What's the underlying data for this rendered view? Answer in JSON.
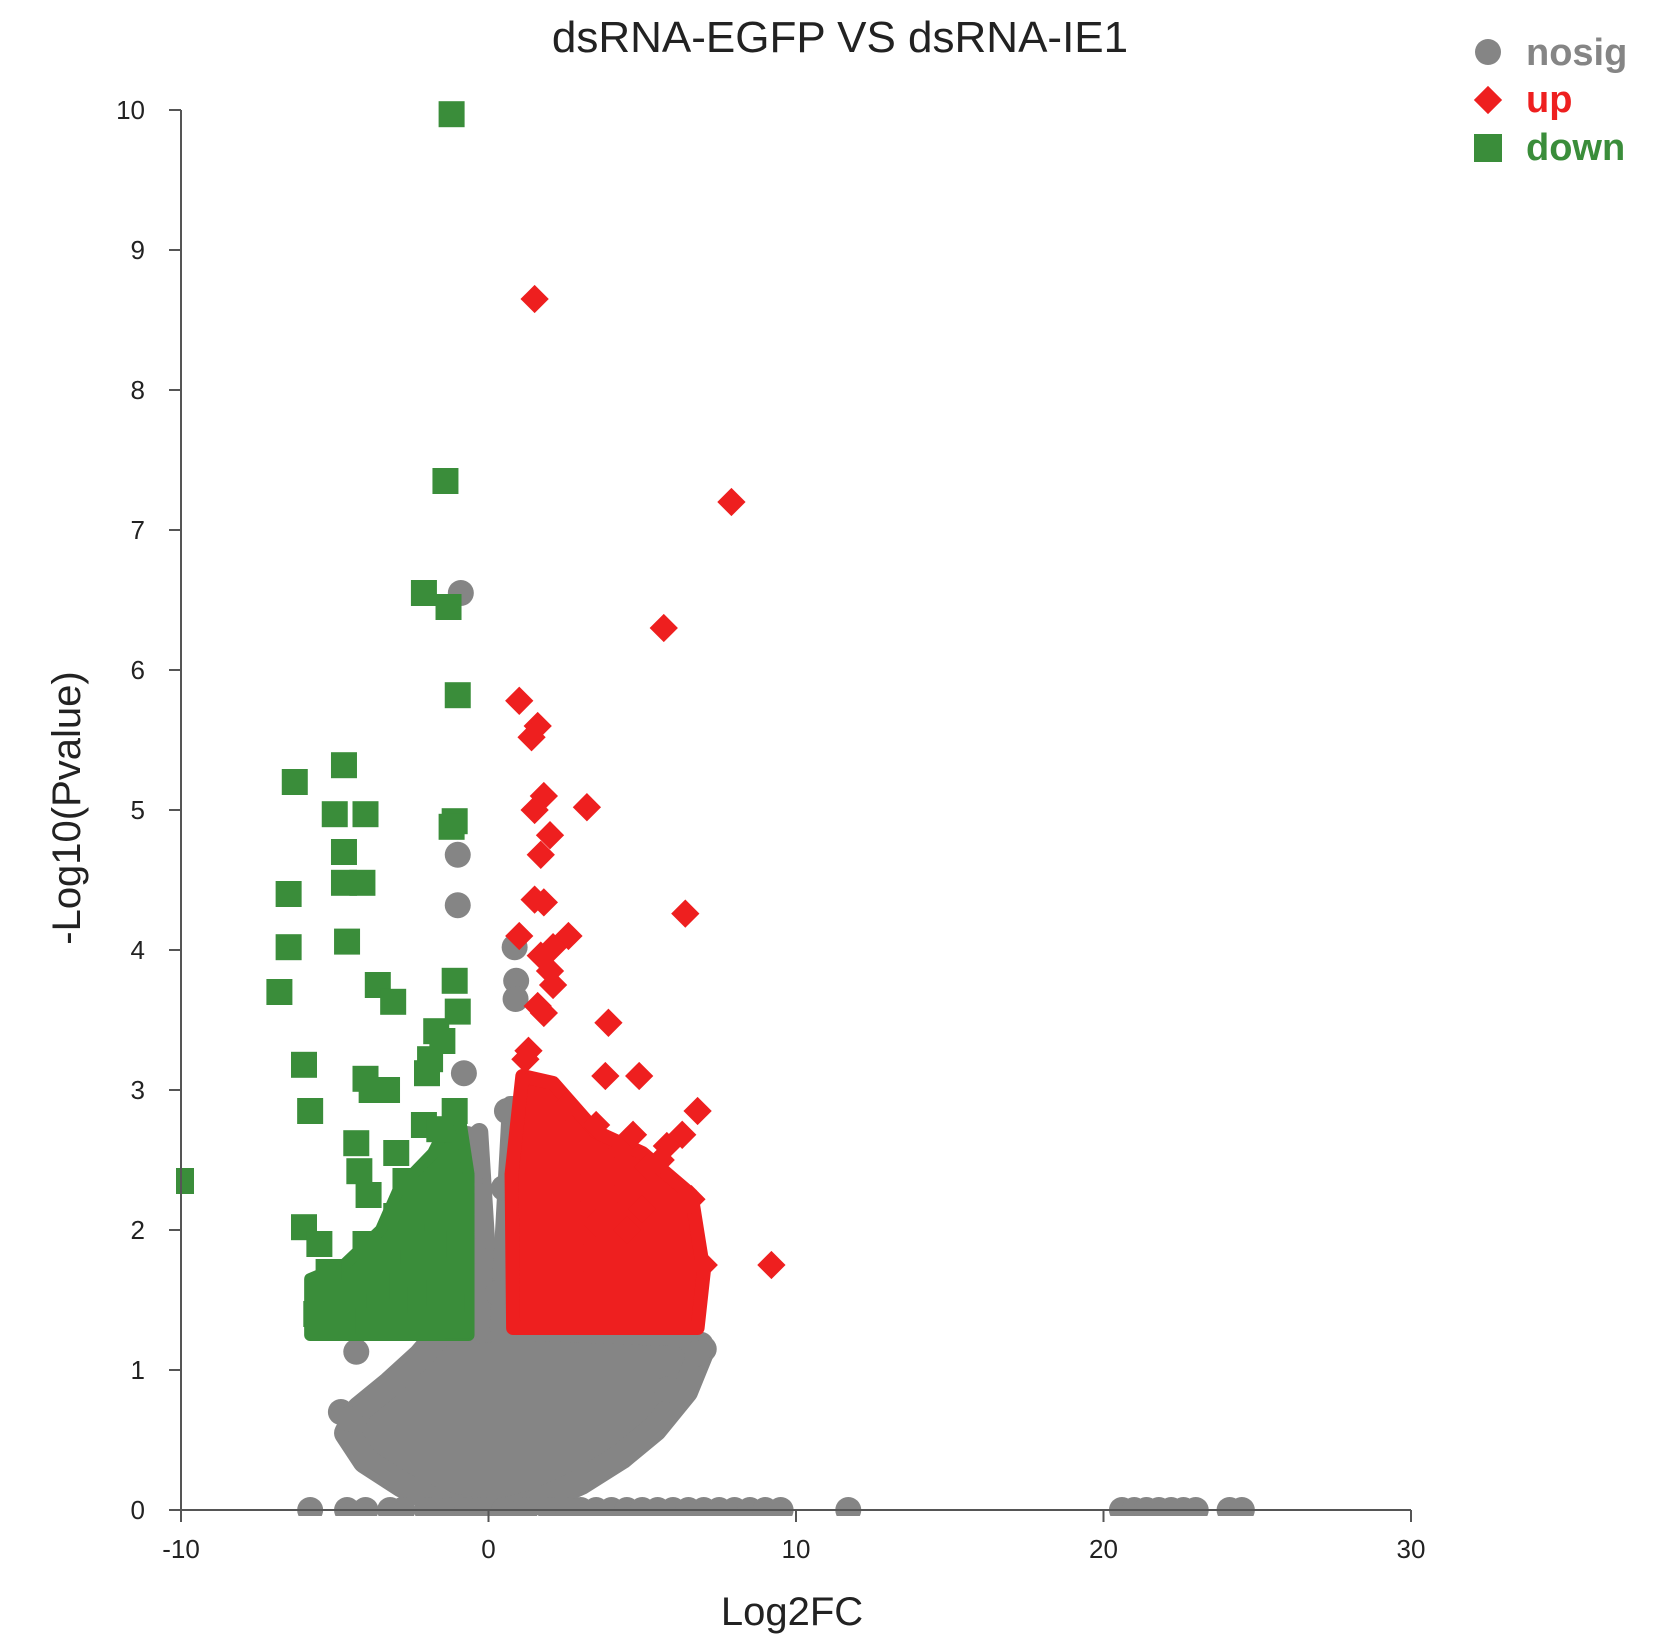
{
  "chart_data": {
    "type": "scatter",
    "title": "dsRNA-EGFP VS dsRNA-IE1",
    "xlabel": "Log2FC",
    "ylabel": "-Log10(Pvalue)",
    "xlim": [
      -10,
      30
    ],
    "ylim": [
      0,
      10
    ],
    "xticks": [
      "-10",
      "0",
      "10",
      "20",
      "30"
    ],
    "yticks": [
      "0",
      "1",
      "2",
      "3",
      "4",
      "5",
      "6",
      "7",
      "8",
      "9",
      "10"
    ],
    "grid": false,
    "legend_position": "top-right",
    "series": [
      {
        "name": "nosig",
        "color": "#858585",
        "marker": "circle",
        "points": [
          [
            -0.9,
            6.55
          ],
          [
            -1.0,
            4.68
          ],
          [
            -1.0,
            4.32
          ],
          [
            0.85,
            4.02
          ],
          [
            0.9,
            3.78
          ],
          [
            0.88,
            3.65
          ],
          [
            -0.8,
            3.12
          ],
          [
            0.6,
            2.85
          ],
          [
            -0.7,
            2.65
          ],
          [
            -0.6,
            2.35
          ],
          [
            0.5,
            2.3
          ],
          [
            -0.5,
            1.85
          ],
          [
            0.3,
            1.55
          ],
          [
            6.9,
            1.18
          ],
          [
            7.0,
            1.15
          ],
          [
            6.8,
            1.12
          ],
          [
            5.8,
            0.86
          ],
          [
            -4.3,
            1.13
          ],
          [
            -4.8,
            0.7
          ],
          [
            -4.5,
            0.65
          ],
          [
            -5.8,
            0
          ],
          [
            -4.6,
            0
          ],
          [
            -4.0,
            0
          ],
          [
            -3.2,
            0
          ],
          [
            -2.8,
            0
          ],
          [
            -2.0,
            0
          ],
          [
            -1.3,
            0
          ],
          [
            -0.7,
            0
          ],
          [
            -0.2,
            0
          ],
          [
            0.5,
            0
          ],
          [
            1.2,
            0
          ],
          [
            2.0,
            0
          ],
          [
            2.6,
            0
          ],
          [
            3.0,
            0
          ],
          [
            3.5,
            0
          ],
          [
            4.0,
            0
          ],
          [
            4.5,
            0
          ],
          [
            5.0,
            0
          ],
          [
            5.5,
            0
          ],
          [
            6.0,
            0
          ],
          [
            6.5,
            0
          ],
          [
            7.0,
            0
          ],
          [
            7.5,
            0
          ],
          [
            8.0,
            0
          ],
          [
            8.5,
            0
          ],
          [
            9.0,
            0
          ],
          [
            9.5,
            0
          ],
          [
            11.7,
            0
          ],
          [
            20.6,
            0
          ],
          [
            21.0,
            0
          ],
          [
            21.4,
            0
          ],
          [
            21.8,
            0
          ],
          [
            22.2,
            0
          ],
          [
            22.6,
            0
          ],
          [
            23.0,
            0
          ],
          [
            24.1,
            0
          ],
          [
            24.5,
            0
          ]
        ]
      },
      {
        "name": "up",
        "color": "#ee1f1f",
        "marker": "diamond",
        "points": [
          [
            1.5,
            8.65
          ],
          [
            7.9,
            7.2
          ],
          [
            5.7,
            6.3
          ],
          [
            1.0,
            5.78
          ],
          [
            1.6,
            5.6
          ],
          [
            1.4,
            5.52
          ],
          [
            1.8,
            5.1
          ],
          [
            3.2,
            5.02
          ],
          [
            1.5,
            5.0
          ],
          [
            2.0,
            4.82
          ],
          [
            1.7,
            4.68
          ],
          [
            1.5,
            4.36
          ],
          [
            1.8,
            4.34
          ],
          [
            6.4,
            4.26
          ],
          [
            2.6,
            4.1
          ],
          [
            2.1,
            4.02
          ],
          [
            1.0,
            4.1
          ],
          [
            1.7,
            3.96
          ],
          [
            2.0,
            3.85
          ],
          [
            2.1,
            3.75
          ],
          [
            1.6,
            3.6
          ],
          [
            1.8,
            3.55
          ],
          [
            3.9,
            3.48
          ],
          [
            1.3,
            3.28
          ],
          [
            1.2,
            3.22
          ],
          [
            3.8,
            3.1
          ],
          [
            4.9,
            3.1
          ],
          [
            6.8,
            2.85
          ],
          [
            2.5,
            2.88
          ],
          [
            3.5,
            2.75
          ],
          [
            4.7,
            2.68
          ],
          [
            6.3,
            2.68
          ],
          [
            5.8,
            2.6
          ],
          [
            4.3,
            2.56
          ],
          [
            3.9,
            2.48
          ],
          [
            5.2,
            2.45
          ],
          [
            5.6,
            2.5
          ],
          [
            4.1,
            2.42
          ],
          [
            2.6,
            2.4
          ],
          [
            3.0,
            2.3
          ],
          [
            9.2,
            1.75
          ],
          [
            7.0,
            1.75
          ],
          [
            6.6,
            2.22
          ],
          [
            6.2,
            2.18
          ],
          [
            5.0,
            2.15
          ],
          [
            4.2,
            2.1
          ],
          [
            4.5,
            2.0
          ],
          [
            5.5,
            1.95
          ],
          [
            3.5,
            2.05
          ],
          [
            4.0,
            1.9
          ],
          [
            3.1,
            1.8
          ],
          [
            2.3,
            2.05
          ]
        ]
      },
      {
        "name": "down",
        "color": "#3a8d3a",
        "marker": "square",
        "points": [
          [
            -1.2,
            9.97
          ],
          [
            -1.4,
            7.35
          ],
          [
            -2.1,
            6.55
          ],
          [
            -1.3,
            6.45
          ],
          [
            -1.0,
            5.82
          ],
          [
            -4.7,
            5.32
          ],
          [
            -6.3,
            5.2
          ],
          [
            -5.0,
            4.97
          ],
          [
            -4.0,
            4.97
          ],
          [
            -1.1,
            4.92
          ],
          [
            -1.2,
            4.88
          ],
          [
            -4.7,
            4.7
          ],
          [
            -4.7,
            4.48
          ],
          [
            -4.1,
            4.48
          ],
          [
            -6.5,
            4.4
          ],
          [
            -4.6,
            4.06
          ],
          [
            -6.5,
            4.02
          ],
          [
            -3.6,
            3.75
          ],
          [
            -6.8,
            3.7
          ],
          [
            -1.1,
            3.78
          ],
          [
            -3.1,
            3.63
          ],
          [
            -1.0,
            3.56
          ],
          [
            -1.7,
            3.42
          ],
          [
            -1.5,
            3.35
          ],
          [
            -6.0,
            3.18
          ],
          [
            -1.9,
            3.22
          ],
          [
            -2.0,
            3.12
          ],
          [
            -4.0,
            3.08
          ],
          [
            -3.8,
            3.0
          ],
          [
            -3.3,
            3.0
          ],
          [
            -5.8,
            2.85
          ],
          [
            -1.1,
            2.85
          ],
          [
            -2.1,
            2.75
          ],
          [
            -1.6,
            2.72
          ],
          [
            -4.3,
            2.62
          ],
          [
            -3.0,
            2.55
          ],
          [
            -4.2,
            2.42
          ],
          [
            -2.7,
            2.35
          ],
          [
            -10.0,
            2.35
          ],
          [
            -3.9,
            2.25
          ],
          [
            -3.0,
            2.1
          ],
          [
            -6.0,
            2.02
          ],
          [
            -5.5,
            1.9
          ],
          [
            -4.0,
            1.9
          ],
          [
            -3.3,
            1.85
          ],
          [
            -2.5,
            1.95
          ],
          [
            -1.8,
            1.9
          ],
          [
            -5.2,
            1.7
          ],
          [
            -5.0,
            1.55
          ],
          [
            -4.4,
            1.45
          ],
          [
            -2.8,
            1.6
          ],
          [
            -2.2,
            1.5
          ],
          [
            -5.6,
            1.4
          ],
          [
            -3.9,
            1.35
          ],
          [
            -1.6,
            1.55
          ],
          [
            -1.2,
            1.45
          ],
          [
            -1.0,
            1.32
          ]
        ]
      }
    ]
  }
}
